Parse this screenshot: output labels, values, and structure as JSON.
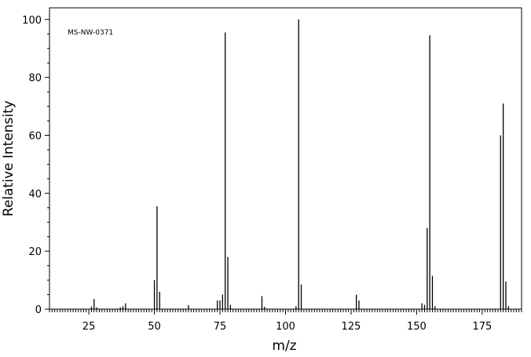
{
  "chart_data": {
    "type": "bar",
    "annotation": "MS-NW-0371",
    "xlabel": "m/z",
    "ylabel": "Relative Intensity",
    "xlim": [
      10,
      190
    ],
    "ylim": [
      0,
      104
    ],
    "x_ticks": [
      25,
      50,
      75,
      100,
      125,
      150,
      175
    ],
    "y_ticks": [
      0,
      20,
      40,
      60,
      80,
      100
    ],
    "grid": false,
    "colors": {
      "bars": "#000000",
      "axes": "#000000"
    },
    "peaks": [
      [
        26,
        0.9
      ],
      [
        27,
        3.5
      ],
      [
        28,
        0.6
      ],
      [
        37,
        0.6
      ],
      [
        38,
        1.0
      ],
      [
        39,
        2.0
      ],
      [
        50,
        10.0
      ],
      [
        51,
        35.5
      ],
      [
        52,
        6.0
      ],
      [
        63,
        1.4
      ],
      [
        74,
        3.0
      ],
      [
        75,
        3.0
      ],
      [
        76,
        5.0
      ],
      [
        77,
        95.5
      ],
      [
        78,
        18.0
      ],
      [
        79,
        1.5
      ],
      [
        91,
        4.5
      ],
      [
        92,
        0.8
      ],
      [
        104,
        1.0
      ],
      [
        105,
        100.0
      ],
      [
        106,
        8.5
      ],
      [
        127,
        5.0
      ],
      [
        128,
        3.0
      ],
      [
        152,
        2.0
      ],
      [
        153,
        1.5
      ],
      [
        154,
        28.0
      ],
      [
        155,
        94.5
      ],
      [
        156,
        11.5
      ],
      [
        157,
        1.0
      ],
      [
        182,
        60.0
      ],
      [
        183,
        71.0
      ],
      [
        184,
        9.5
      ],
      [
        185,
        1.0
      ]
    ]
  }
}
